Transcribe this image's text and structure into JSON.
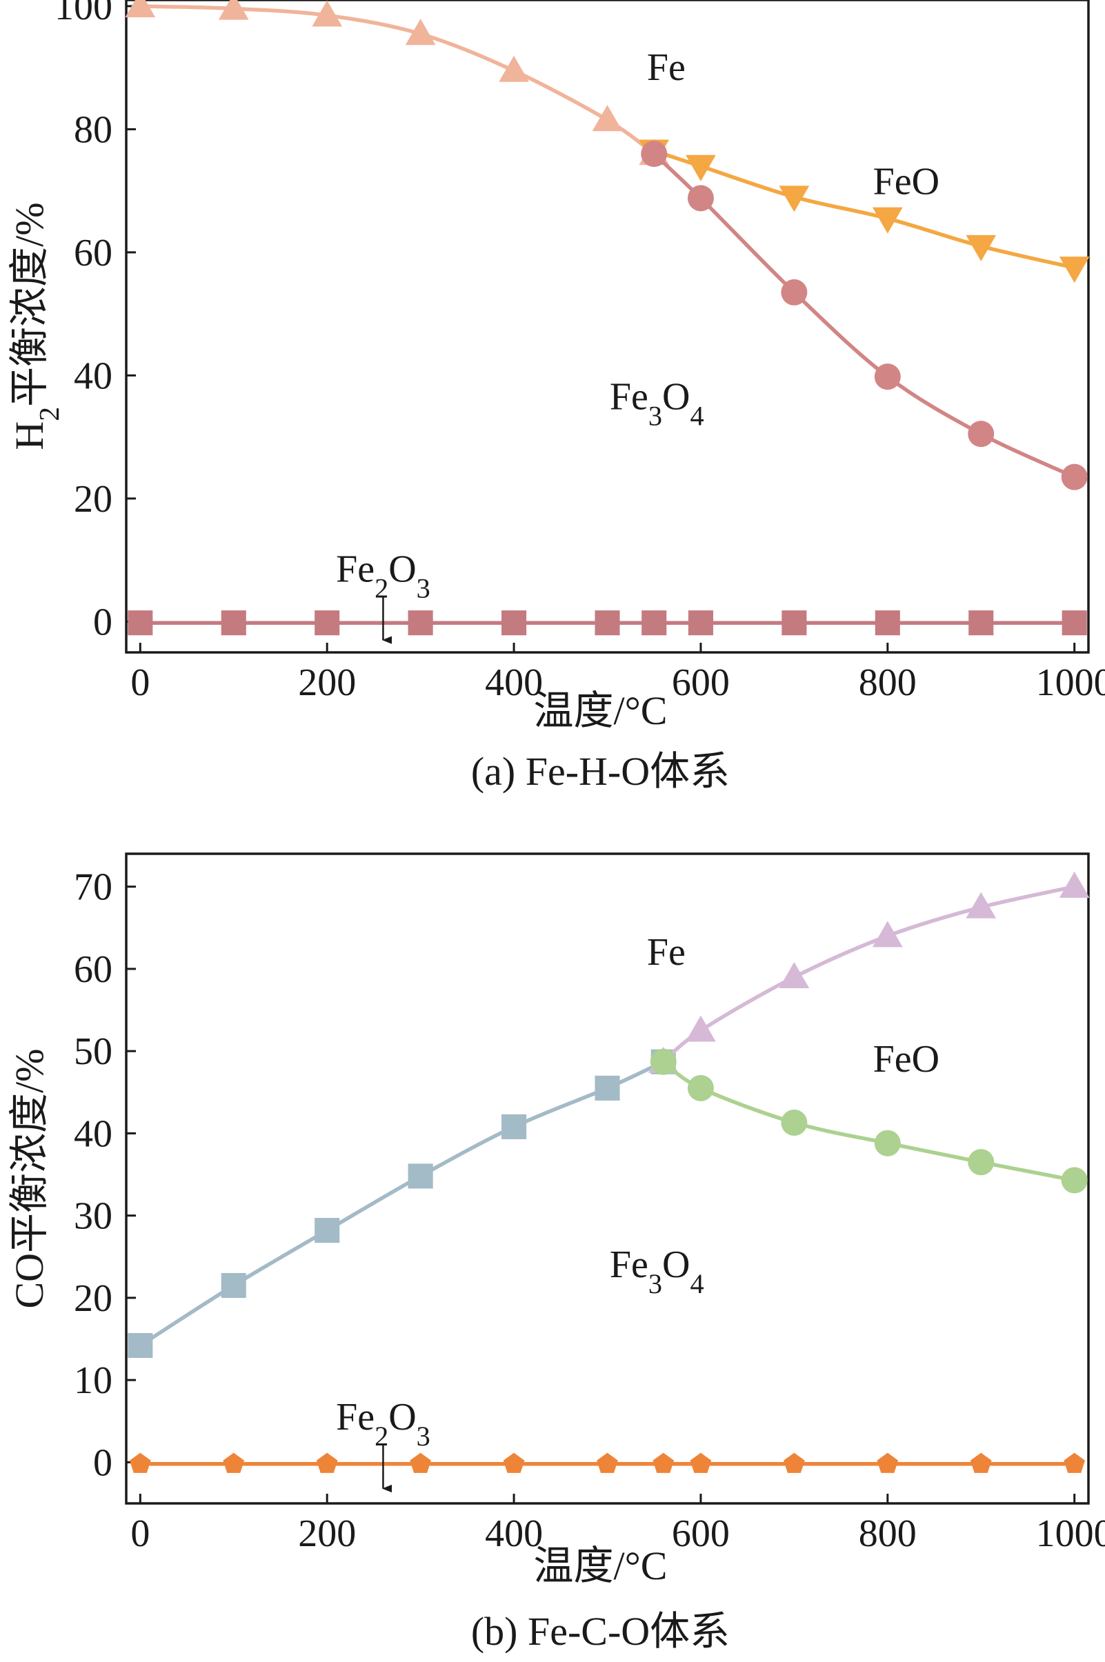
{
  "chart_data": [
    {
      "type": "line",
      "ylabel": "H2平衡浓度/%",
      "xlabel": "温度/°C",
      "caption": "(a) Fe-H-O体系",
      "xlim": [
        -15,
        1015
      ],
      "ylim": [
        -5,
        101
      ],
      "xticks": [
        0,
        200,
        400,
        600,
        800,
        1000
      ],
      "yticks": [
        0,
        20,
        40,
        60,
        80,
        100
      ],
      "grid": false,
      "series": [
        {
          "color": "#f0b49a",
          "marker": "triangle-up",
          "x": [
            0,
            100,
            200,
            300,
            400,
            500,
            550
          ],
          "y": [
            100,
            99.6,
            98.5,
            95.5,
            89.5,
            81.5,
            76
          ]
        },
        {
          "color": "#f4a742",
          "marker": "triangle-down",
          "x": [
            550,
            600,
            700,
            800,
            900,
            1000
          ],
          "y": [
            76.5,
            74,
            69,
            65.5,
            61,
            57.5
          ]
        },
        {
          "color": "#d18584",
          "marker": "circle",
          "x": [
            550,
            600,
            700,
            800,
            900,
            1000
          ],
          "y": [
            76,
            68.8,
            53.5,
            39.8,
            30.5,
            23.5
          ]
        },
        {
          "color": "#c47b80",
          "marker": "square",
          "x": [
            0,
            100,
            200,
            300,
            400,
            500,
            550,
            600,
            700,
            800,
            900,
            1000
          ],
          "y": [
            -0.2,
            -0.2,
            -0.2,
            -0.2,
            -0.2,
            -0.2,
            -0.2,
            -0.2,
            -0.2,
            -0.2,
            -0.2,
            -0.2
          ]
        }
      ],
      "annotations": [
        {
          "text": "Fe",
          "x": 563,
          "y": 90
        },
        {
          "text": "FeO",
          "x": 820,
          "y": 71.5
        },
        {
          "text": "Fe3O4",
          "x": 553,
          "y": 36.5
        },
        {
          "text": "Fe2O3",
          "x": 260,
          "y": 8.5,
          "arrow_to": [
            260,
            -3
          ]
        }
      ]
    },
    {
      "type": "line",
      "ylabel": "CO平衡浓度/%",
      "xlabel": "温度/°C",
      "caption": "(b) Fe-C-O体系",
      "xlim": [
        -15,
        1015
      ],
      "ylim": [
        -5,
        74
      ],
      "xticks": [
        0,
        200,
        400,
        600,
        800,
        1000
      ],
      "yticks": [
        0,
        10,
        20,
        30,
        40,
        50,
        60,
        70
      ],
      "grid": false,
      "series": [
        {
          "color": "#a3bac7",
          "marker": "square",
          "x": [
            0,
            100,
            200,
            300,
            400,
            500,
            560
          ],
          "y": [
            14.2,
            21.5,
            28.2,
            34.8,
            40.8,
            45.5,
            48.7
          ]
        },
        {
          "color": "#d5b9d6",
          "marker": "triangle-up",
          "x": [
            560,
            600,
            700,
            800,
            900,
            1000
          ],
          "y": [
            48.7,
            52.5,
            59,
            64,
            67.5,
            70
          ]
        },
        {
          "color": "#acd190",
          "marker": "circle",
          "x": [
            560,
            600,
            700,
            800,
            900,
            1000
          ],
          "y": [
            48.7,
            45.5,
            41.3,
            38.8,
            36.5,
            34.3
          ]
        },
        {
          "color": "#ee8438",
          "marker": "pentagon",
          "x": [
            0,
            100,
            200,
            300,
            400,
            500,
            560,
            600,
            700,
            800,
            900,
            1000
          ],
          "y": [
            -0.2,
            -0.2,
            -0.2,
            -0.2,
            -0.2,
            -0.2,
            -0.2,
            -0.2,
            -0.2,
            -0.2,
            -0.2,
            -0.2
          ]
        }
      ],
      "annotations": [
        {
          "text": "Fe",
          "x": 563,
          "y": 62
        },
        {
          "text": "FeO",
          "x": 820,
          "y": 49
        },
        {
          "text": "Fe3O4",
          "x": 553,
          "y": 24
        },
        {
          "text": "Fe2O3",
          "x": 260,
          "y": 5.5,
          "arrow_to": [
            260,
            -3.2
          ]
        }
      ]
    }
  ]
}
